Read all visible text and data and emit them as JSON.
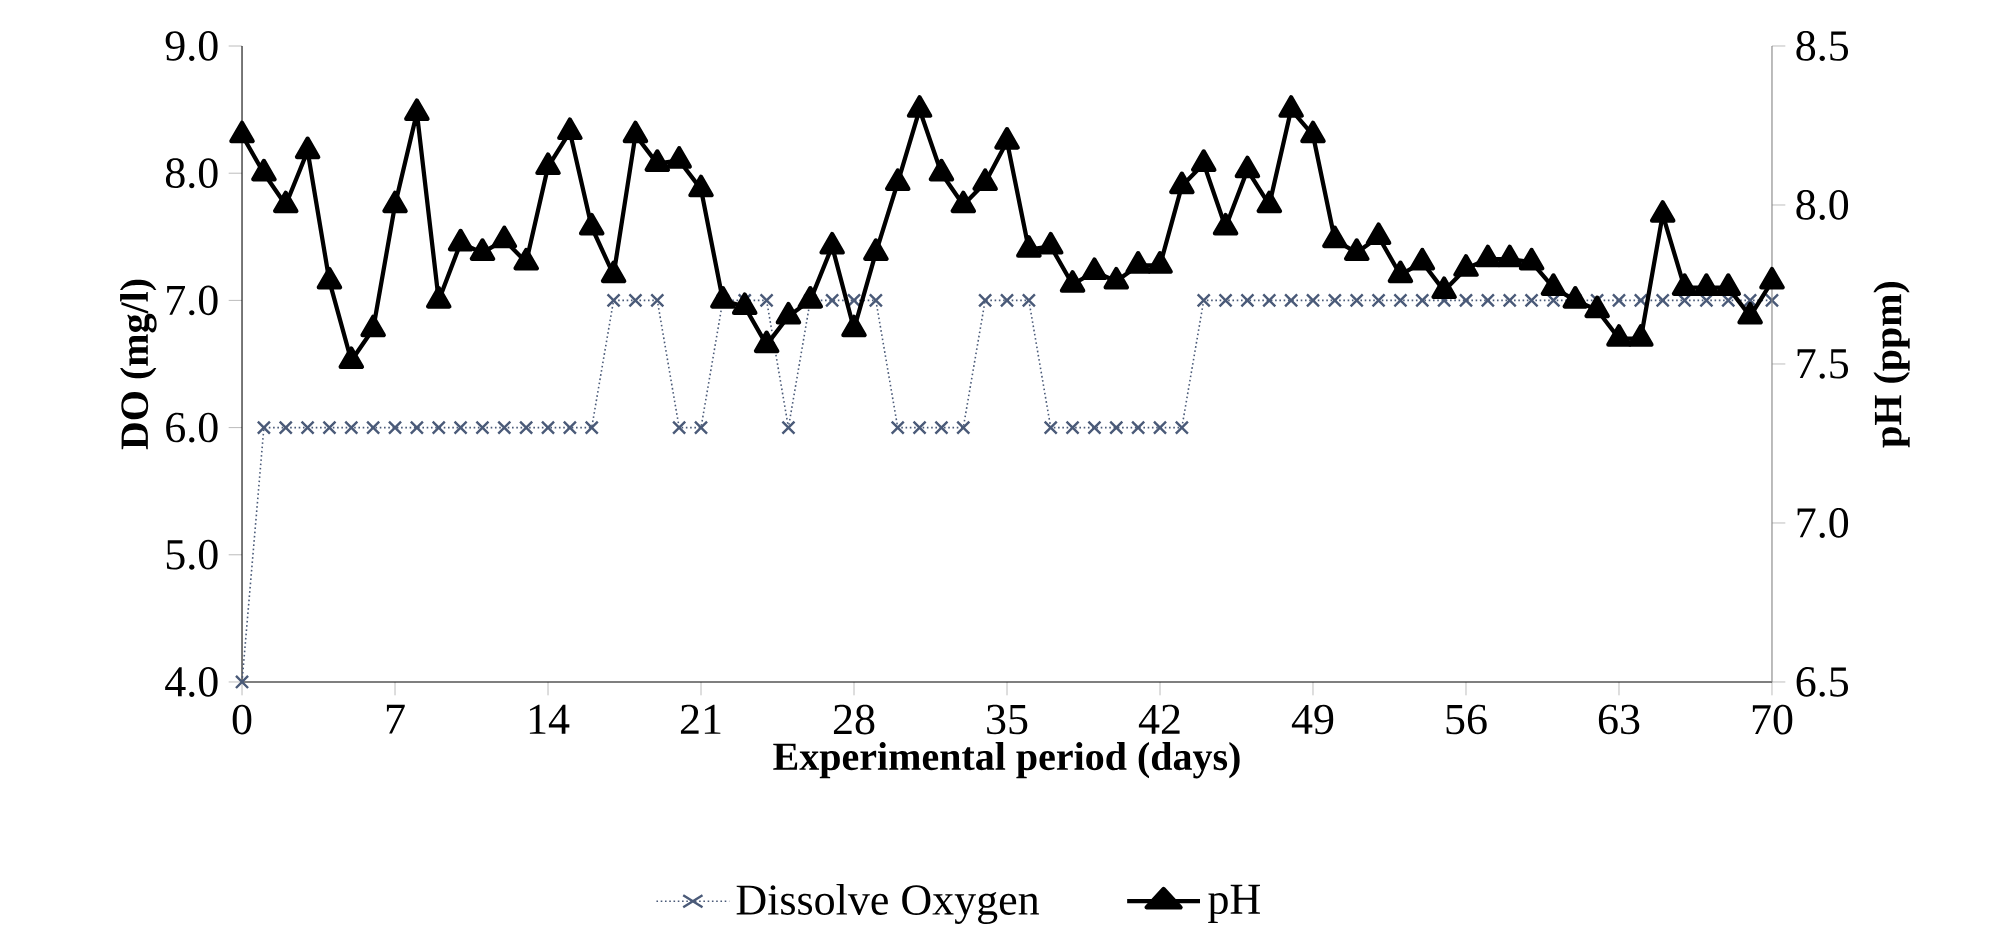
{
  "chart_data": {
    "type": "line",
    "xlabel": "Experimental period (days)",
    "ylabel": "DO (mg/l)",
    "y2label": "pH (ppm)",
    "x": [
      0,
      1,
      2,
      3,
      4,
      5,
      6,
      7,
      8,
      9,
      10,
      11,
      12,
      13,
      14,
      15,
      16,
      17,
      18,
      19,
      20,
      21,
      22,
      23,
      24,
      25,
      26,
      27,
      28,
      29,
      30,
      31,
      32,
      33,
      34,
      35,
      36,
      37,
      38,
      39,
      40,
      41,
      42,
      43,
      44,
      45,
      46,
      47,
      48,
      49,
      50,
      51,
      52,
      53,
      54,
      55,
      56,
      57,
      58,
      59,
      60,
      61,
      62,
      63,
      64,
      65,
      66,
      67,
      68,
      69,
      70
    ],
    "series": [
      {
        "name": "Dissolve Oxygen",
        "color": "#4a5a78",
        "marker": "cross",
        "line_style": "dotted",
        "values": [
          4,
          6,
          6,
          6,
          6,
          6,
          6,
          6,
          6,
          6,
          6,
          6,
          6,
          6,
          6,
          6,
          6,
          7,
          7,
          7,
          6,
          6,
          7,
          7,
          7,
          6,
          7,
          7,
          7,
          7,
          6,
          6,
          6,
          6,
          7,
          7,
          7,
          6,
          6,
          6,
          6,
          6,
          6,
          6,
          7,
          7,
          7,
          7,
          7,
          7,
          7,
          7,
          7,
          7,
          7,
          7,
          7,
          7,
          7,
          7,
          7,
          7,
          7,
          7,
          7,
          7,
          7,
          7,
          7,
          7,
          7
        ]
      },
      {
        "name": "pH",
        "color": "#000000",
        "marker": "triangle",
        "line_style": "solid",
        "axis": "y2",
        "values": [
          8.22,
          8.1,
          8.0,
          8.17,
          7.76,
          7.51,
          7.61,
          8.0,
          8.29,
          7.7,
          7.88,
          7.85,
          7.89,
          7.82,
          8.12,
          8.23,
          7.93,
          7.78,
          8.22,
          8.13,
          8.14,
          8.05,
          7.7,
          7.68,
          7.56,
          7.65,
          7.7,
          7.87,
          7.61,
          7.85,
          8.07,
          8.3,
          8.1,
          8.0,
          8.07,
          8.2,
          7.86,
          7.87,
          7.75,
          7.79,
          7.76,
          7.81,
          7.81,
          8.06,
          8.13,
          7.93,
          8.11,
          8.0,
          8.3,
          8.22,
          7.89,
          7.85,
          7.9,
          7.78,
          7.82,
          7.73,
          7.8,
          7.83,
          7.83,
          7.82,
          7.74,
          7.7,
          7.67,
          7.58,
          7.58,
          7.97,
          7.74,
          7.74,
          7.74,
          7.65,
          7.76
        ]
      }
    ],
    "xlim": [
      0,
      70
    ],
    "xticks": [
      0,
      7,
      14,
      21,
      28,
      35,
      42,
      49,
      56,
      63,
      70
    ],
    "ylim": [
      4,
      9
    ],
    "yticks": [
      {
        "value": 4,
        "label": "4.0"
      },
      {
        "value": 5,
        "label": "5.0"
      },
      {
        "value": 6,
        "label": "6.0"
      },
      {
        "value": 7,
        "label": "7.0"
      },
      {
        "value": 8,
        "label": "8.0"
      },
      {
        "value": 9,
        "label": "9.0"
      }
    ],
    "y2lim": [
      6.5,
      8.5
    ],
    "y2ticks": [
      6.5,
      {
        "value": 7,
        "label": "7.0"
      },
      7.5,
      {
        "value": 8,
        "label": "8.0"
      },
      8.5
    ],
    "grid": false,
    "legend": "bottom"
  }
}
